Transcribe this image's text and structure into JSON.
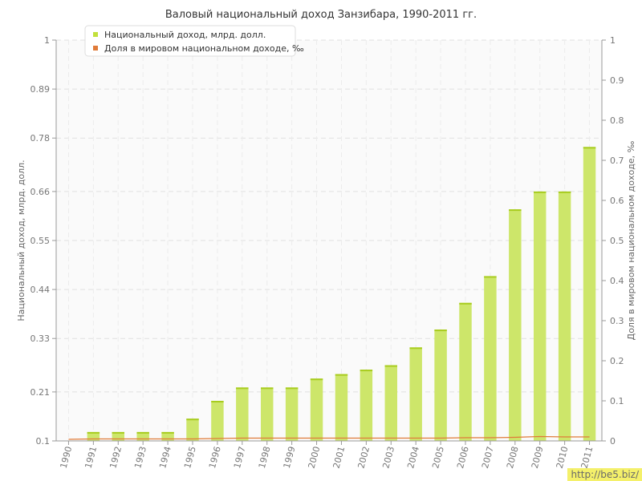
{
  "chart_data": {
    "type": "bar",
    "title": "Валовый национальный доход Занзибара, 1990-2011 гг.",
    "xlabel": "",
    "ylabel": "Национальный доход, млрд. долл.",
    "y2label": "Доля в мировом национальном доходе, ‰",
    "ylim": [
      0.1,
      1
    ],
    "y2lim": [
      0,
      1
    ],
    "yticks": [
      "0.1",
      "0.21",
      "0.33",
      "0.44",
      "0.55",
      "0.66",
      "0.78",
      "0.89",
      "1"
    ],
    "y2ticks": [
      "0",
      "0.1",
      "0.2",
      "0.3",
      "0.4",
      "0.5",
      "0.6",
      "0.7",
      "0.8",
      "0.9",
      "1"
    ],
    "categories": [
      "1990",
      "1991",
      "1992",
      "1993",
      "1994",
      "1995",
      "1996",
      "1997",
      "1998",
      "1999",
      "2000",
      "2001",
      "2002",
      "2003",
      "2004",
      "2005",
      "2006",
      "2007",
      "2008",
      "2009",
      "2010",
      "2011"
    ],
    "series": [
      {
        "name": "Национальный доход, млрд. долл.",
        "type": "bar",
        "axis": "left",
        "color": "#c2e03c",
        "values": [
          null,
          0.12,
          0.12,
          0.12,
          0.12,
          0.15,
          0.19,
          0.22,
          0.22,
          0.22,
          0.24,
          0.25,
          0.26,
          0.27,
          0.31,
          0.35,
          0.41,
          0.47,
          0.62,
          0.66,
          0.66,
          0.76
        ]
      },
      {
        "name": "Доля в мировом национальном доходе, ‰",
        "type": "line",
        "axis": "right",
        "color": "#e07b39",
        "values": [
          0.004,
          0.005,
          0.005,
          0.005,
          0.005,
          0.005,
          0.006,
          0.007,
          0.007,
          0.007,
          0.007,
          0.007,
          0.007,
          0.007,
          0.007,
          0.007,
          0.008,
          0.008,
          0.009,
          0.011,
          0.01,
          0.01
        ]
      }
    ],
    "grid": true,
    "legend_position": "top-left"
  },
  "watermark": "http://be5.biz/"
}
